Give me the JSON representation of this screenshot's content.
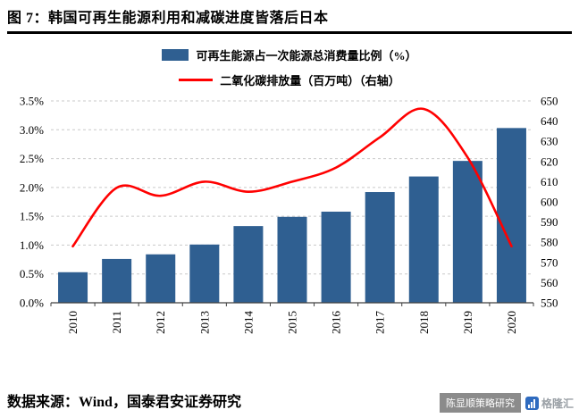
{
  "header": {
    "title": "图 7：韩国可再生能源利用和减碳进度皆落后日本"
  },
  "legend": [
    {
      "type": "bar",
      "label": "可再生能源占一次能源总消费量比例（%）"
    },
    {
      "type": "line",
      "label": "二氧化碳排放量（百万吨）（右轴）"
    }
  ],
  "colors": {
    "bar": "#2f5f91",
    "line": "#ff0000",
    "grid": "#c9c9c9",
    "axis": "#404040",
    "tick_text": "#000000"
  },
  "chart_data": {
    "type": "bar",
    "subtype": "bar+line dual axis",
    "categories": [
      "2010",
      "2011",
      "2012",
      "2013",
      "2014",
      "2015",
      "2016",
      "2017",
      "2018",
      "2019",
      "2020"
    ],
    "series": [
      {
        "name": "可再生能源占一次能源总消费量比例（%）",
        "type": "bar",
        "axis": "left",
        "values": [
          0.53,
          0.76,
          0.84,
          1.01,
          1.33,
          1.49,
          1.58,
          1.92,
          2.19,
          2.46,
          3.03
        ]
      },
      {
        "name": "二氧化碳排放量（百万吨）",
        "type": "line",
        "axis": "right",
        "values": [
          578,
          607,
          603,
          610,
          605,
          610,
          617,
          632,
          646,
          622,
          578
        ]
      }
    ],
    "left_axis": {
      "min": 0,
      "max": 3.5,
      "step": 0.5,
      "format": "percent"
    },
    "right_axis": {
      "min": 550,
      "max": 650,
      "step": 10,
      "format": "integer"
    },
    "grid": true,
    "legend_position": "top"
  },
  "footer": {
    "source": "数据来源：Wind，国泰君安证券研究"
  },
  "watermark": {
    "badge": "陈显顺策略研究",
    "logo_text": "格隆汇"
  }
}
